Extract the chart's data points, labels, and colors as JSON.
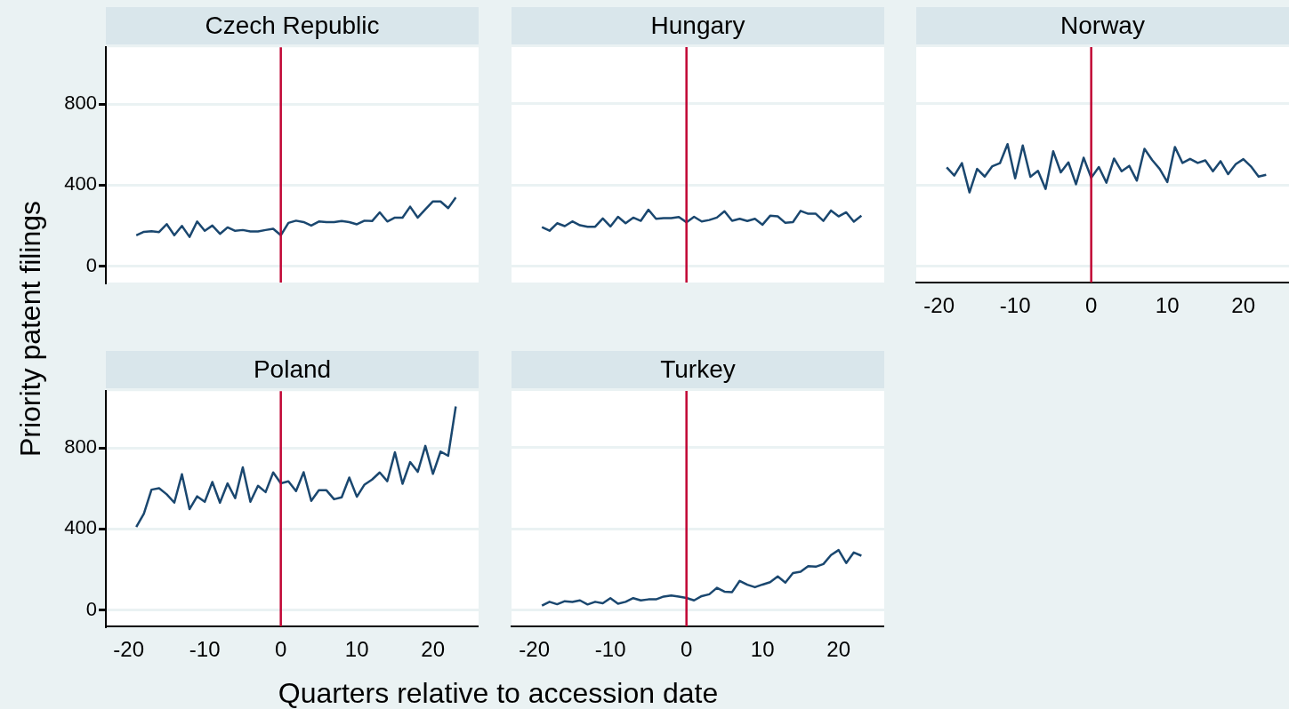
{
  "chart_data": [
    {
      "type": "line",
      "title": "Czech Republic",
      "ylabel": "Priority patent filings",
      "xlabel": "Quarters relative to accession date",
      "tick_labels": "y",
      "grid": "y",
      "marker": "none",
      "xlim": [
        -23,
        26
      ],
      "xticks": [
        -20,
        -10,
        0,
        10,
        20
      ],
      "ylim": [
        -80,
        1080
      ],
      "yticks": [
        0,
        400,
        800
      ],
      "ref_lines": [
        {
          "axis": "x",
          "value": 0,
          "color": "#c10534"
        }
      ],
      "series": [
        {
          "color": "#1a476f",
          "x": [
            -19,
            -18,
            -17,
            -16,
            -15,
            -14,
            -13,
            -12,
            -11,
            -10,
            -9,
            -8,
            -7,
            -6,
            -5,
            -4,
            -3,
            -2,
            -1,
            0,
            1,
            2,
            3,
            4,
            5,
            6,
            7,
            8,
            9,
            10,
            11,
            12,
            13,
            14,
            15,
            16,
            17,
            18,
            19,
            20,
            21,
            22,
            23
          ],
          "values": [
            153,
            170,
            173,
            169,
            208,
            153,
            199,
            145,
            221,
            175,
            201,
            160,
            192,
            175,
            179,
            172,
            172,
            179,
            185,
            153,
            214,
            225,
            218,
            201,
            221,
            218,
            218,
            223,
            218,
            207,
            225,
            223,
            266,
            221,
            240,
            240,
            294,
            240,
            281,
            320,
            320,
            287,
            339
          ]
        }
      ]
    },
    {
      "type": "line",
      "title": "Hungary",
      "tick_labels": false,
      "grid": "y",
      "marker": "none",
      "xlim": [
        -23,
        26
      ],
      "xticks": [
        -20,
        -10,
        0,
        10,
        20
      ],
      "ylim": [
        -80,
        1080
      ],
      "yticks": [
        0,
        400,
        800
      ],
      "ref_lines": [
        {
          "axis": "x",
          "value": 0,
          "color": "#c10534"
        }
      ],
      "series": [
        {
          "color": "#1a476f",
          "x": [
            -19,
            -18,
            -17,
            -16,
            -15,
            -14,
            -13,
            -12,
            -11,
            -10,
            -9,
            -8,
            -7,
            -6,
            -5,
            -4,
            -3,
            -2,
            -1,
            0,
            1,
            2,
            3,
            4,
            5,
            6,
            7,
            8,
            9,
            10,
            11,
            12,
            13,
            14,
            15,
            16,
            17,
            18,
            19,
            20,
            21,
            22,
            23
          ],
          "values": [
            193,
            175,
            212,
            198,
            221,
            202,
            195,
            195,
            236,
            196,
            244,
            212,
            240,
            224,
            279,
            234,
            237,
            237,
            243,
            217,
            244,
            221,
            228,
            240,
            271,
            224,
            234,
            223,
            234,
            205,
            249,
            246,
            214,
            218,
            273,
            259,
            259,
            224,
            275,
            246,
            266,
            220,
            249
          ]
        }
      ]
    },
    {
      "type": "line",
      "title": "Norway",
      "tick_labels": "x",
      "grid": "y",
      "marker": "none",
      "xlim": [
        -23,
        26
      ],
      "xticks": [
        -20,
        -10,
        0,
        10,
        20
      ],
      "ylim": [
        -80,
        1080
      ],
      "yticks": [
        0,
        400,
        800
      ],
      "ref_lines": [
        {
          "axis": "x",
          "value": 0,
          "color": "#c10534"
        }
      ],
      "series": [
        {
          "color": "#1a476f",
          "x": [
            -19,
            -18,
            -17,
            -16,
            -15,
            -14,
            -13,
            -12,
            -11,
            -10,
            -9,
            -8,
            -7,
            -6,
            -5,
            -4,
            -3,
            -2,
            -1,
            0,
            1,
            2,
            3,
            4,
            5,
            6,
            7,
            8,
            9,
            10,
            11,
            12,
            13,
            14,
            15,
            16,
            17,
            18,
            19,
            20,
            21,
            22,
            23
          ],
          "values": [
            487,
            447,
            508,
            364,
            480,
            442,
            493,
            508,
            602,
            433,
            595,
            441,
            470,
            381,
            567,
            463,
            512,
            404,
            535,
            436,
            489,
            412,
            531,
            468,
            495,
            422,
            579,
            524,
            480,
            415,
            588,
            509,
            529,
            509,
            522,
            468,
            518,
            454,
            503,
            528,
            492,
            442,
            451
          ]
        }
      ]
    },
    {
      "type": "line",
      "title": "Poland",
      "grid": "y",
      "marker": "none",
      "xlim": [
        -23,
        26
      ],
      "xticks": [
        -20,
        -10,
        0,
        10,
        20
      ],
      "ylim": [
        -80,
        1080
      ],
      "yticks": [
        0,
        400,
        800
      ],
      "ref_lines": [
        {
          "axis": "x",
          "value": 0,
          "color": "#c10534"
        }
      ],
      "series": [
        {
          "color": "#1a476f",
          "x": [
            -19,
            -18,
            -17,
            -16,
            -15,
            -14,
            -13,
            -12,
            -11,
            -10,
            -9,
            -8,
            -7,
            -6,
            -5,
            -4,
            -3,
            -2,
            -1,
            0,
            1,
            2,
            3,
            4,
            5,
            6,
            7,
            8,
            9,
            10,
            11,
            12,
            13,
            14,
            15,
            16,
            17,
            18,
            19,
            20,
            21,
            22,
            23
          ],
          "values": [
            410,
            476,
            594,
            601,
            571,
            530,
            670,
            498,
            561,
            534,
            632,
            530,
            625,
            552,
            704,
            534,
            613,
            582,
            679,
            625,
            635,
            587,
            680,
            539,
            591,
            591,
            547,
            556,
            654,
            559,
            619,
            644,
            679,
            636,
            778,
            623,
            730,
            682,
            810,
            672,
            782,
            761,
            1004
          ]
        }
      ]
    },
    {
      "type": "line",
      "title": "Turkey",
      "tick_labels": "x",
      "grid": "y",
      "marker": "none",
      "xlim": [
        -23,
        26
      ],
      "xticks": [
        -20,
        -10,
        0,
        10,
        20
      ],
      "ylim": [
        -80,
        1080
      ],
      "yticks": [
        0,
        400,
        800
      ],
      "ref_lines": [
        {
          "axis": "x",
          "value": 0,
          "color": "#c10534"
        }
      ],
      "series": [
        {
          "color": "#1a476f",
          "x": [
            -19,
            -18,
            -17,
            -16,
            -15,
            -14,
            -13,
            -12,
            -11,
            -10,
            -9,
            -8,
            -7,
            -6,
            -5,
            -4,
            -3,
            -2,
            -1,
            0,
            1,
            2,
            3,
            4,
            5,
            6,
            7,
            8,
            9,
            10,
            11,
            12,
            13,
            14,
            15,
            16,
            17,
            18,
            19,
            20,
            21,
            22,
            23
          ],
          "values": [
            22,
            41,
            29,
            44,
            40,
            48,
            28,
            41,
            34,
            59,
            32,
            41,
            59,
            48,
            53,
            53,
            67,
            72,
            67,
            60,
            48,
            69,
            78,
            110,
            91,
            89,
            144,
            125,
            113,
            126,
            138,
            166,
            136,
            183,
            189,
            217,
            214,
            227,
            271,
            296,
            232,
            284,
            268
          ]
        }
      ]
    }
  ]
}
